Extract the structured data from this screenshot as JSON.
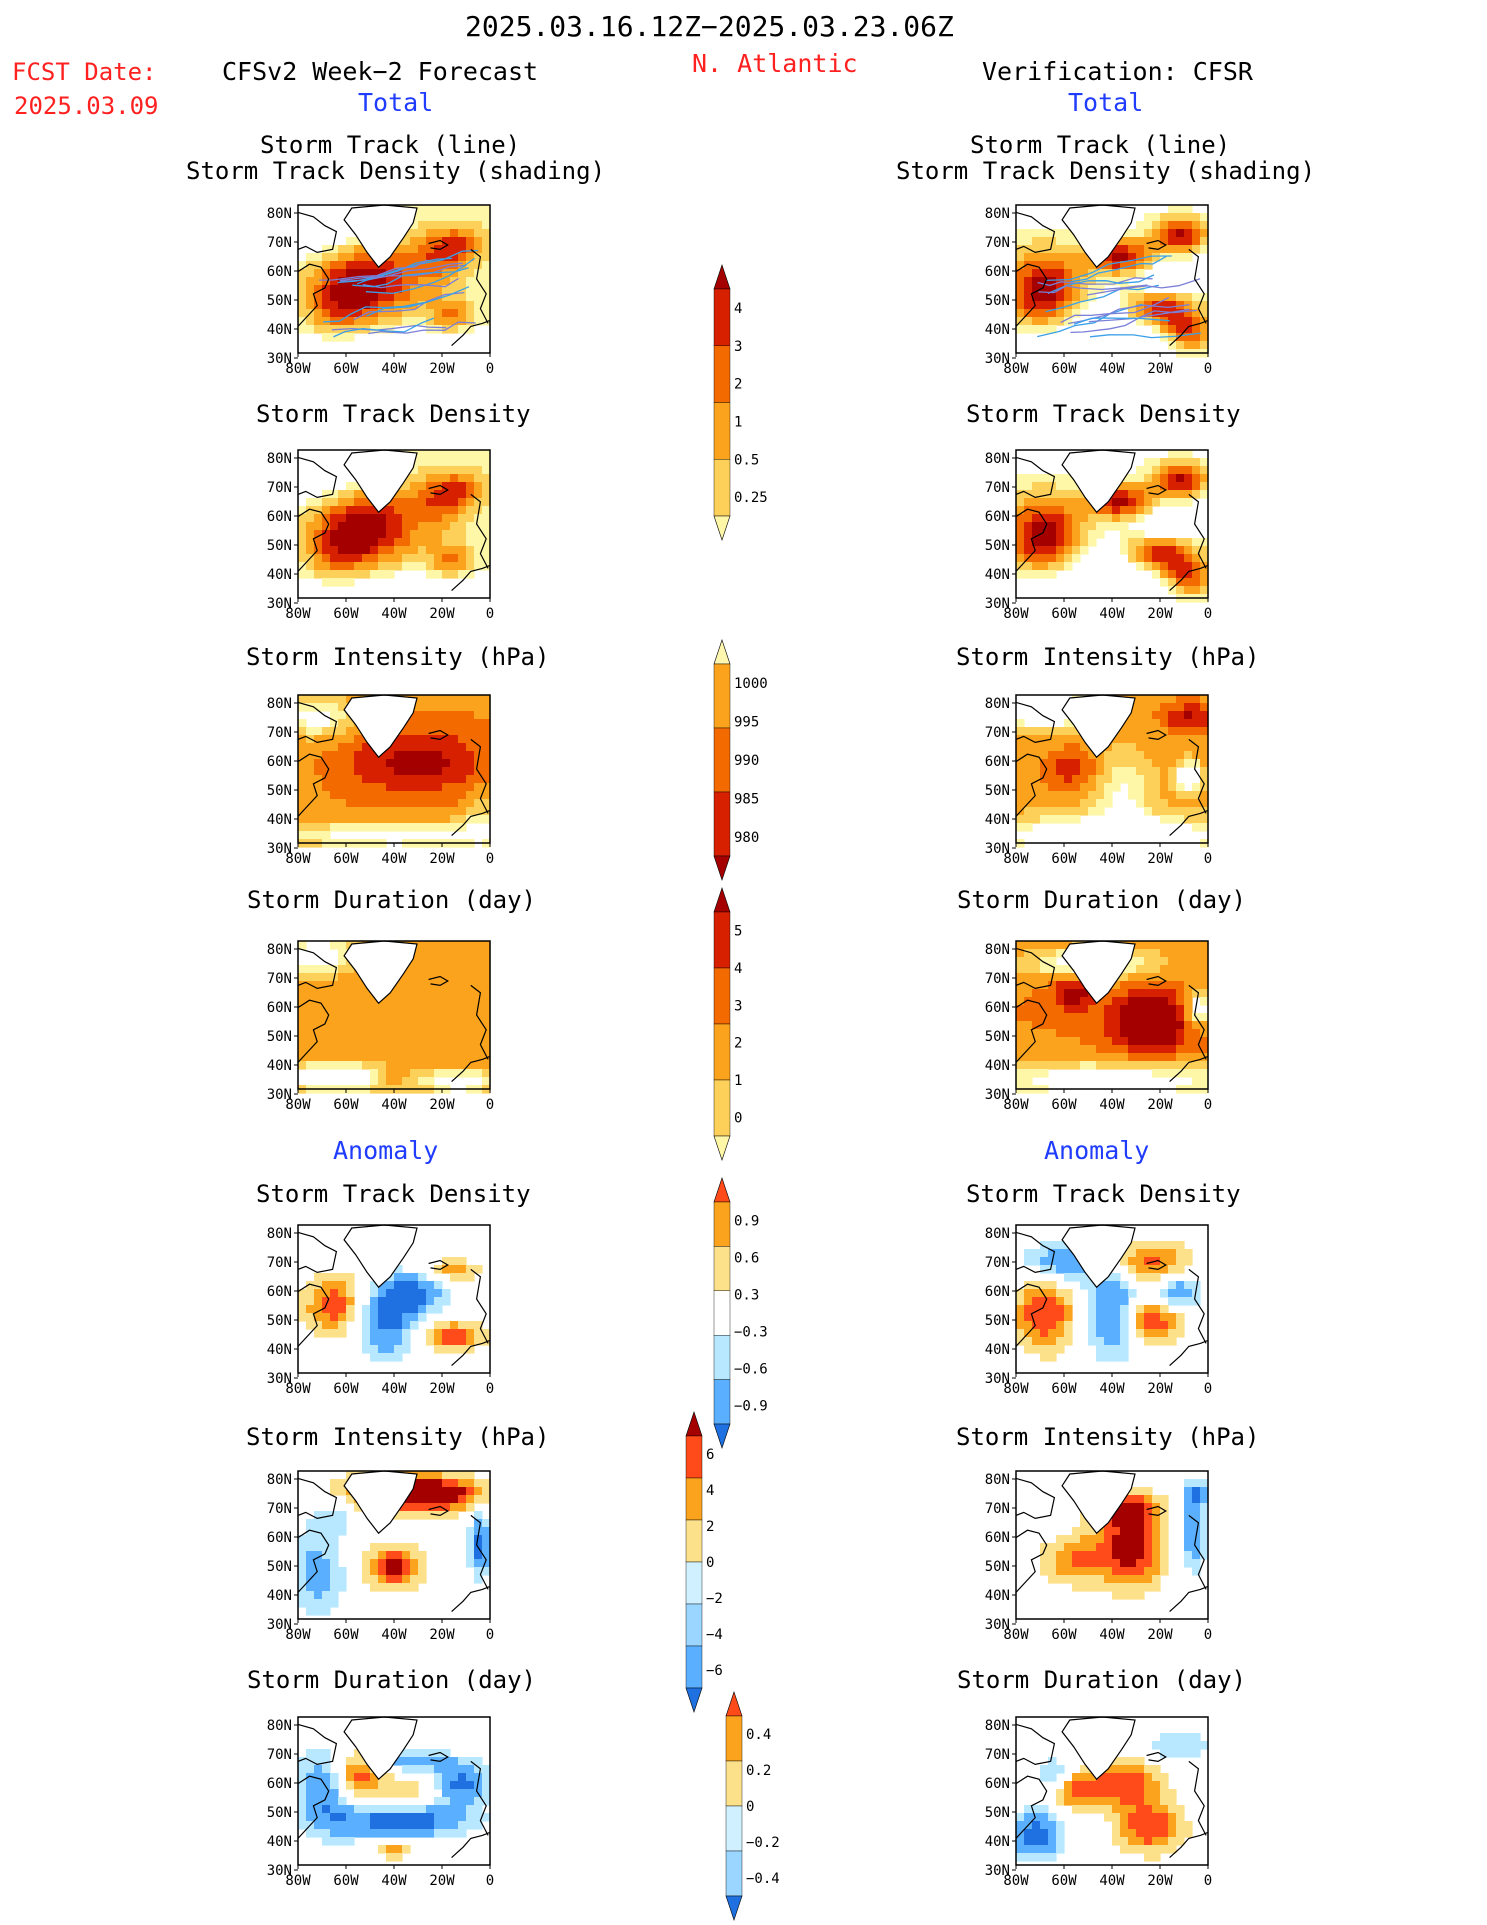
{
  "header": {
    "period": "2025.03.16.12Z−2025.03.23.06Z",
    "fcst_label": "FCST Date:",
    "fcst_date": "2025.03.09",
    "forecast_title": "CFSv2 Week−2 Forecast",
    "region": "N. Atlantic",
    "verification_title": "Verification: CFSR"
  },
  "sections": {
    "total": "Total",
    "anomaly": "Anomaly"
  },
  "panel_titles": {
    "track_line": "Storm Track (line)",
    "track_shading": "Storm Track Density (shading)",
    "density": "Storm Track Density",
    "intensity": "Storm Intensity (hPa)",
    "duration": "Storm Duration (day)"
  },
  "axes": {
    "lat_ticks": [
      "80N",
      "70N",
      "60N",
      "50N",
      "40N",
      "30N"
    ],
    "lon_ticks": [
      "80W",
      "60W",
      "40W",
      "20W",
      "0"
    ]
  },
  "colorbars": [
    {
      "id": "density",
      "labels": [
        "4",
        "3",
        "2",
        "1",
        "0.5",
        "0.25"
      ],
      "colors": [
        "#a50000",
        "#d62000",
        "#f26a00",
        "#fba31c",
        "#fdd05a",
        "#fff7a8"
      ]
    },
    {
      "id": "intensity",
      "labels": [
        "1000",
        "995",
        "990",
        "985",
        "980"
      ],
      "colors": [
        "#fff7b0",
        "#fba31c",
        "#f26a00",
        "#d62000",
        "#a50000"
      ]
    },
    {
      "id": "duration",
      "labels": [
        "5",
        "4",
        "3",
        "2",
        "1",
        "0"
      ],
      "colors": [
        "#a50000",
        "#d62000",
        "#f26a00",
        "#fba31c",
        "#fdd05a",
        "#fff7a8"
      ]
    },
    {
      "id": "anom_density",
      "labels": [
        "0.9",
        "0.6",
        "0.3",
        "−0.3",
        "−0.6",
        "−0.9"
      ],
      "colors": [
        "#ff4a1a",
        "#fba31c",
        "#fde08a",
        "#ffffff",
        "#b8e8ff",
        "#5ab0ff",
        "#1f70e0"
      ]
    },
    {
      "id": "anom_intensity",
      "labels": [
        "6",
        "4",
        "2",
        "0",
        "−2",
        "−4",
        "−6"
      ],
      "colors": [
        "#a50000",
        "#ff4a1a",
        "#fba31c",
        "#fde08a",
        "#d0f0ff",
        "#9ad6ff",
        "#5ab0ff",
        "#1f70e0"
      ]
    },
    {
      "id": "anom_duration",
      "labels": [
        "0.4",
        "0.2",
        "0",
        "−0.2",
        "−0.4"
      ],
      "colors": [
        "#ff4a1a",
        "#fba31c",
        "#fde08a",
        "#d0f0ff",
        "#9ad6ff",
        "#1f70e0"
      ]
    }
  ],
  "colors": {
    "header_red": "#ff2020",
    "section_blue": "#1f3cff",
    "ocean_empty": "#ffffff"
  }
}
